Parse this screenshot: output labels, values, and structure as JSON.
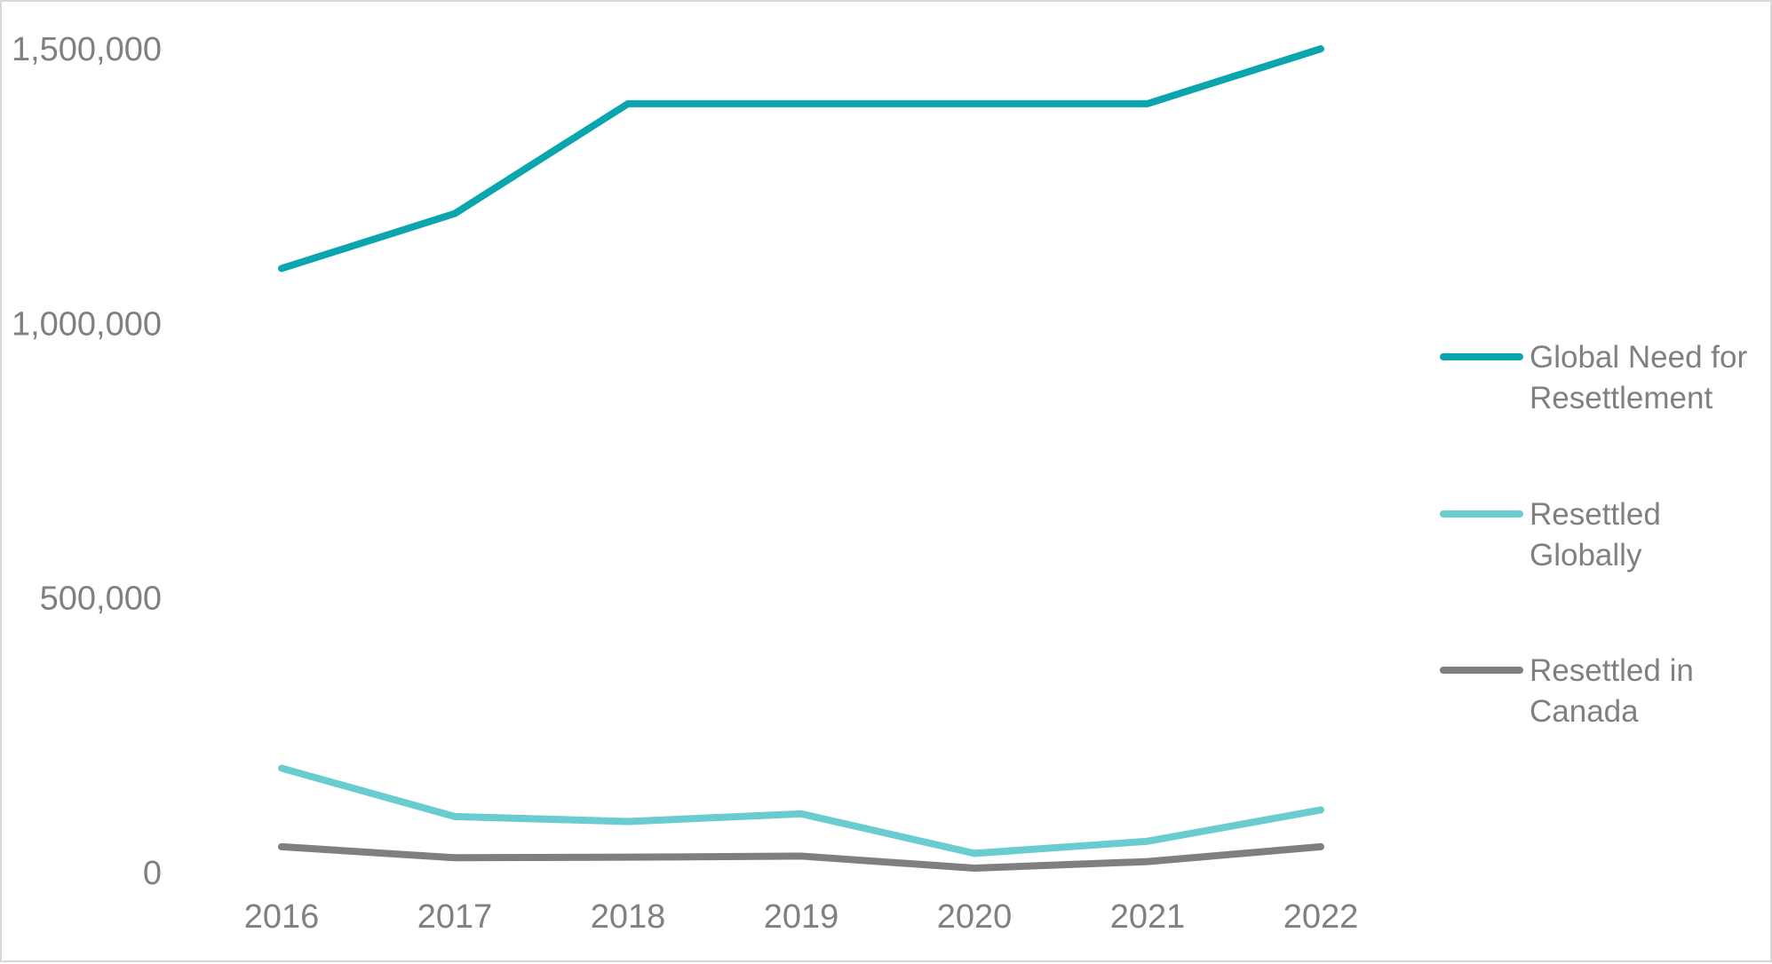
{
  "chart_data": {
    "type": "line",
    "title": "",
    "xlabel": "",
    "ylabel": "",
    "categories": [
      "2016",
      "2017",
      "2018",
      "2019",
      "2020",
      "2021",
      "2022"
    ],
    "ylim": [
      0,
      1500000
    ],
    "yticks": [
      0,
      500000,
      1000000,
      1500000
    ],
    "ytick_labels": [
      "0",
      "500,000",
      "1,000,000",
      "1,500,000"
    ],
    "grid": false,
    "legend_position": "right",
    "series": [
      {
        "name": "Global Need for Resettlement",
        "legend_lines": [
          "Global Need for",
          "Resettlement"
        ],
        "color": "#0aa5af",
        "values": [
          1100000,
          1200000,
          1400000,
          1400000,
          1400000,
          1400000,
          1500000
        ]
      },
      {
        "name": "Resettled Globally",
        "legend_lines": [
          "Resettled",
          "Globally"
        ],
        "color": "#68ccd1",
        "values": [
          190000,
          102000,
          93000,
          107000,
          35000,
          57000,
          114000
        ]
      },
      {
        "name": "Resettled in Canada",
        "legend_lines": [
          "Resettled in",
          "Canada"
        ],
        "color": "#7f7f7f",
        "values": [
          47000,
          27000,
          28000,
          30000,
          8000,
          20000,
          47000
        ]
      }
    ]
  }
}
